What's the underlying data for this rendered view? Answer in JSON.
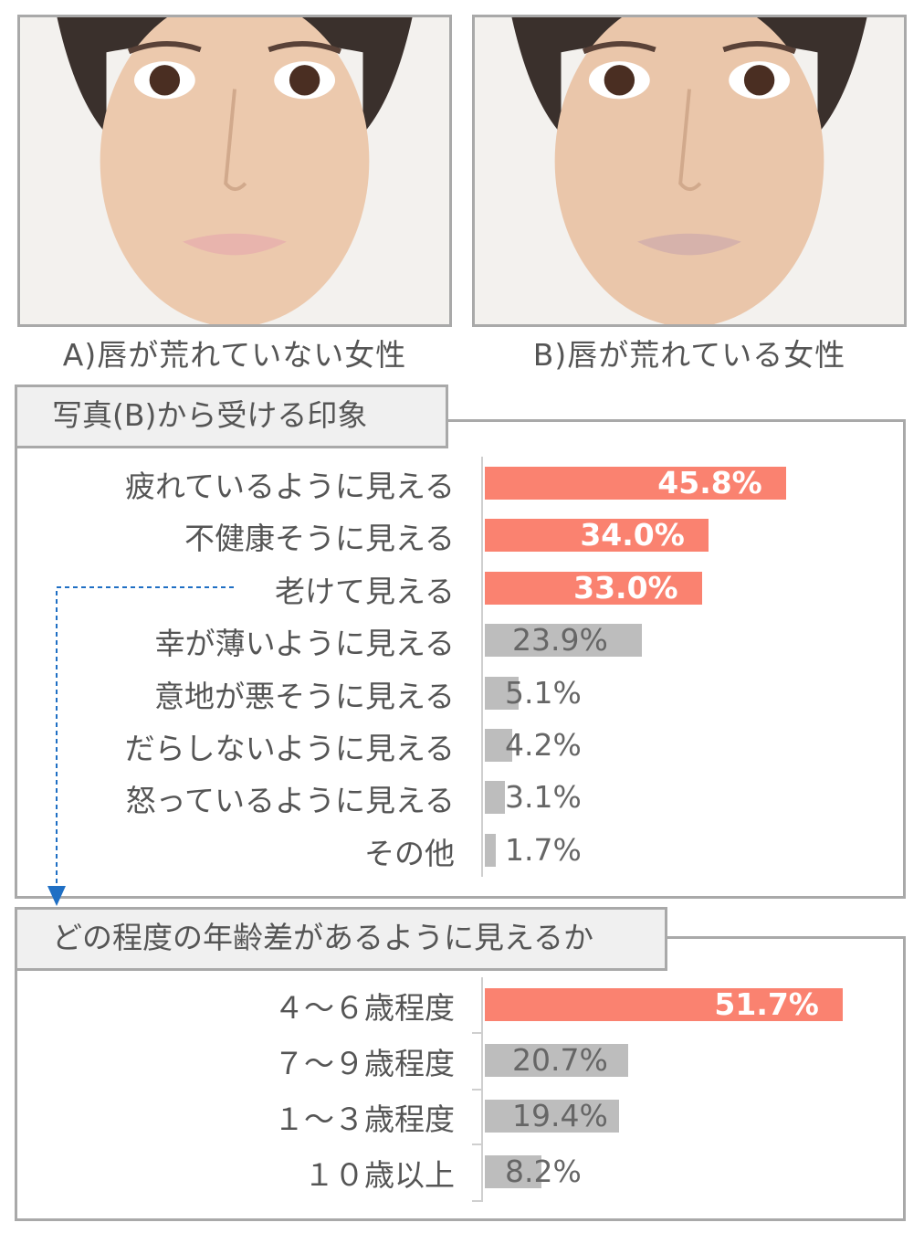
{
  "photos": [
    {
      "caption": "A)唇が荒れていない女性",
      "lip_color": "#e8b4ad"
    },
    {
      "caption": "B)唇が荒れている女性",
      "lip_color": "#d6b2ab"
    }
  ],
  "section1": {
    "title": "写真(B)から受ける印象",
    "rows": [
      {
        "label": "疲れているように見える",
        "value": 45.8,
        "text": "45.8%",
        "highlight": true
      },
      {
        "label": "不健康そうに見える",
        "value": 34.0,
        "text": "34.0%",
        "highlight": true
      },
      {
        "label": "老けて見える",
        "value": 33.0,
        "text": "33.0%",
        "highlight": true
      },
      {
        "label": "幸が薄いように見える",
        "value": 23.9,
        "text": "23.9%",
        "highlight": false
      },
      {
        "label": "意地が悪そうに見える",
        "value": 5.1,
        "text": "5.1%",
        "highlight": false
      },
      {
        "label": "だらしないように見える",
        "value": 4.2,
        "text": "4.2%",
        "highlight": false
      },
      {
        "label": "怒っているように見える",
        "value": 3.1,
        "text": "3.1%",
        "highlight": false
      },
      {
        "label": "その他",
        "value": 1.7,
        "text": "1.7%",
        "highlight": false
      }
    ]
  },
  "section2": {
    "title": "どの程度の年齢差があるように見えるか",
    "rows": [
      {
        "label": "４～６歳程度",
        "value": 51.7,
        "text": "51.7%",
        "highlight": true
      },
      {
        "label": "７～９歳程度",
        "value": 20.7,
        "text": "20.7%",
        "highlight": false
      },
      {
        "label": "１～３歳程度",
        "value": 19.4,
        "text": "19.4%",
        "highlight": false
      },
      {
        "label": "１０歳以上",
        "value": 8.2,
        "text": "8.2%",
        "highlight": false
      }
    ]
  },
  "colors": {
    "highlight": "#fa8270",
    "normal": "#bdbdbd",
    "arrow": "#1f6fc4"
  }
}
